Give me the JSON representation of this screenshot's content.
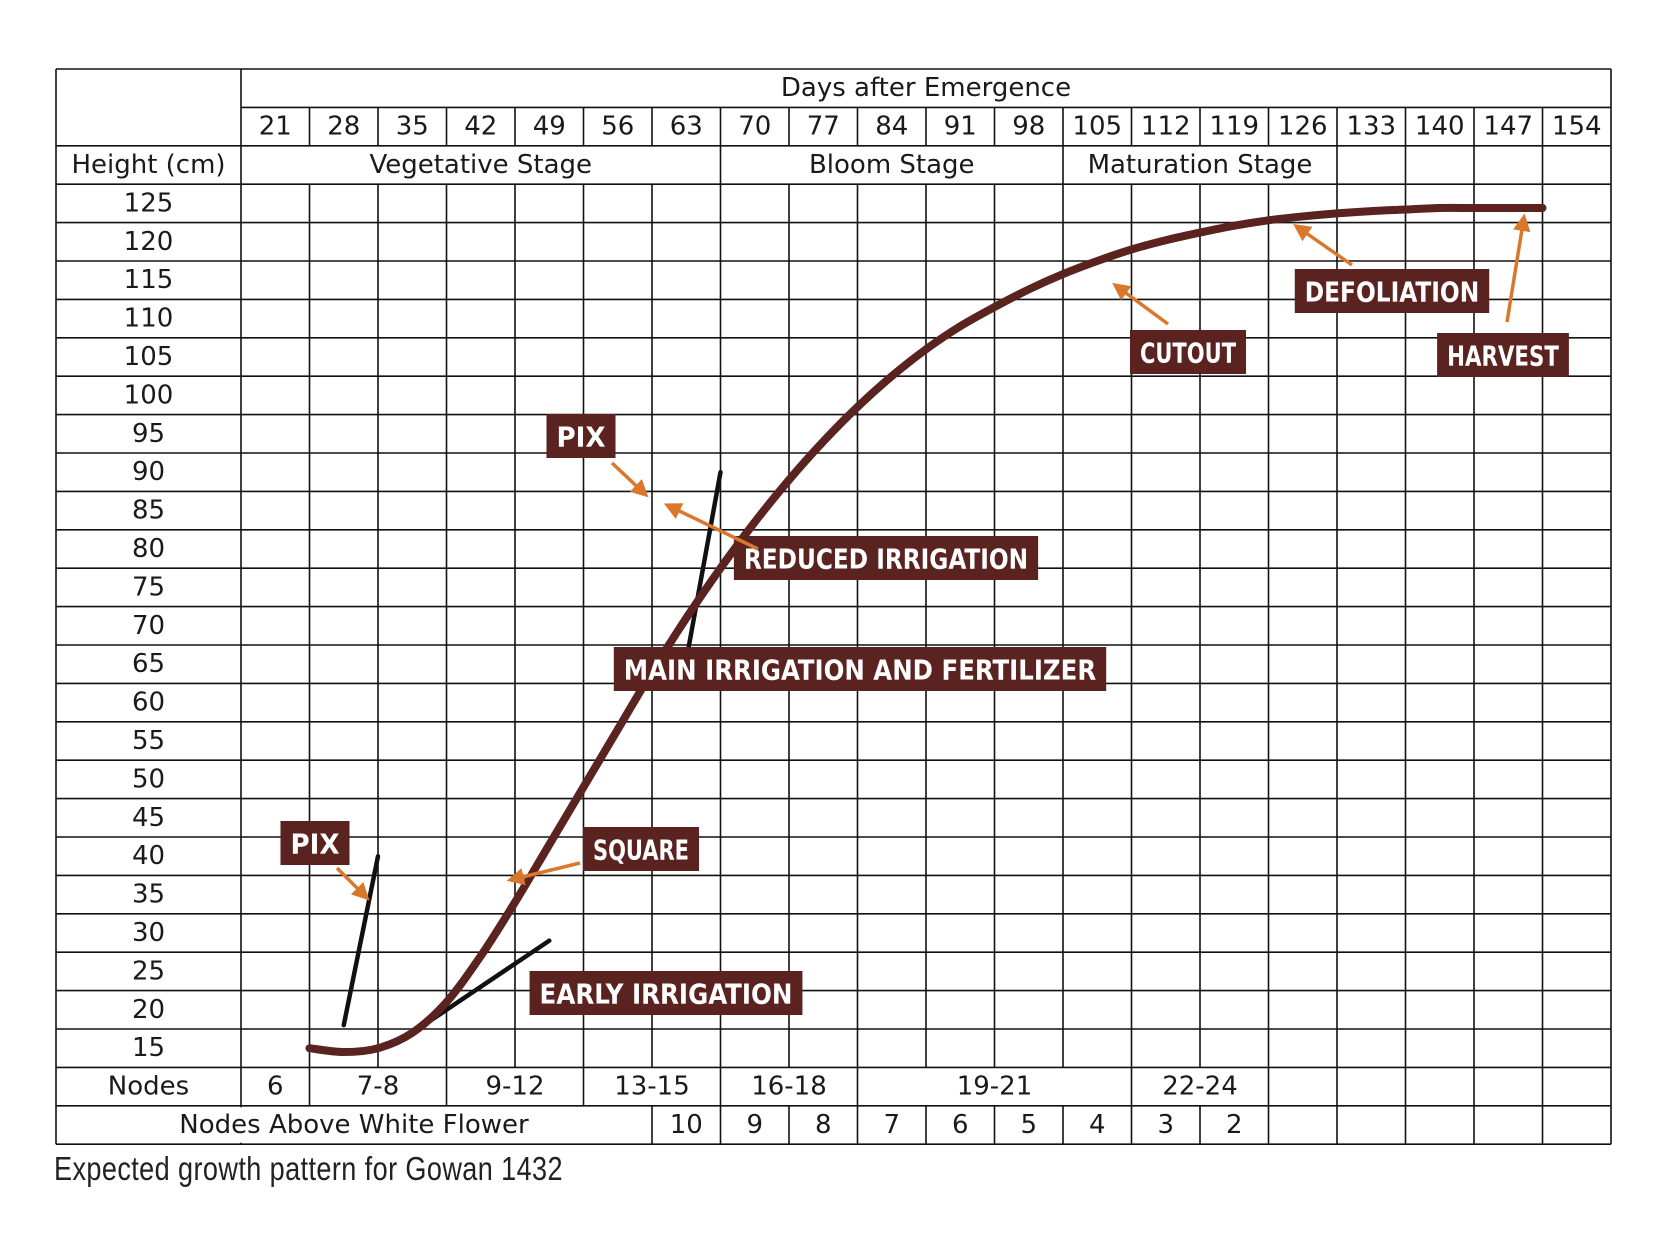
{
  "chart_data": {
    "type": "line",
    "header": "Days after Emergence",
    "x": [
      21,
      28,
      35,
      42,
      49,
      56,
      63,
      70,
      77,
      84,
      91,
      98,
      105,
      112,
      119,
      126,
      133,
      140,
      147,
      154
    ],
    "row_header_height": "Height (cm)",
    "y_ticks": [
      125,
      120,
      115,
      110,
      105,
      100,
      95,
      90,
      85,
      80,
      75,
      70,
      65,
      60,
      55,
      50,
      45,
      40,
      35,
      30,
      25,
      20,
      15
    ],
    "stages": [
      {
        "label": "Vegetative Stage",
        "from": 21,
        "to": 63
      },
      {
        "label": "Bloom Stage",
        "from": 70,
        "to": 98
      },
      {
        "label": "Maturation Stage",
        "from": 105,
        "to": 126
      }
    ],
    "nodes_label": "Nodes",
    "nodes": [
      {
        "label": "6",
        "from": 21,
        "to": 21
      },
      {
        "label": "7-8",
        "from": 28,
        "to": 35
      },
      {
        "label": "9-12",
        "from": 42,
        "to": 49
      },
      {
        "label": "13-15",
        "from": 56,
        "to": 63
      },
      {
        "label": "16-18",
        "from": 70,
        "to": 77
      },
      {
        "label": "19-21",
        "from": 84,
        "to": 105
      },
      {
        "label": "22-24",
        "from": 112,
        "to": 119
      }
    ],
    "nawf_label": "Nodes Above White Flower",
    "nawf": [
      {
        "day": 63,
        "value": "10"
      },
      {
        "day": 70,
        "value": "9"
      },
      {
        "day": 77,
        "value": "8"
      },
      {
        "day": 84,
        "value": "7"
      },
      {
        "day": 91,
        "value": "6"
      },
      {
        "day": 98,
        "value": "5"
      },
      {
        "day": 105,
        "value": "4"
      },
      {
        "day": 112,
        "value": "3"
      },
      {
        "day": 119,
        "value": "2"
      }
    ],
    "series": [
      {
        "color": "#5a2320",
        "points": [
          [
            24.5,
            15
          ],
          [
            28,
            14.5
          ],
          [
            31.5,
            15
          ],
          [
            35,
            17
          ],
          [
            38.5,
            21
          ],
          [
            42,
            27
          ],
          [
            45.5,
            34
          ],
          [
            49,
            41.5
          ],
          [
            52.5,
            49
          ],
          [
            56,
            56.5
          ],
          [
            59.5,
            64
          ],
          [
            63,
            71
          ],
          [
            66.5,
            77.5
          ],
          [
            70,
            83.5
          ],
          [
            73.5,
            89
          ],
          [
            77,
            94
          ],
          [
            80.5,
            98.5
          ],
          [
            84,
            102.5
          ],
          [
            87.5,
            106
          ],
          [
            91,
            109
          ],
          [
            94.5,
            111.5
          ],
          [
            98,
            113.8
          ],
          [
            101.5,
            115.8
          ],
          [
            105,
            117.5
          ],
          [
            108.5,
            119
          ],
          [
            112,
            120.2
          ],
          [
            115.5,
            121.2
          ],
          [
            119,
            122.1
          ],
          [
            122.5,
            122.8
          ],
          [
            126,
            123.3
          ],
          [
            129.5,
            123.7
          ],
          [
            133,
            124
          ],
          [
            136.5,
            124.2
          ],
          [
            140,
            124.4
          ],
          [
            143.5,
            124.4
          ],
          [
            147,
            124.4
          ],
          [
            150.5,
            124.4
          ]
        ]
      }
    ],
    "tangents": [
      {
        "from": [
          28,
          18
        ],
        "to": [
          31.5,
          40
        ]
      },
      {
        "from": [
          35,
          17
        ],
        "to": [
          49,
          29
        ]
      },
      {
        "from": [
          63,
          65.5
        ],
        "to": [
          66.5,
          90
        ]
      }
    ],
    "annotations": [
      {
        "text": "PIX",
        "day": 31.5,
        "height": 36
      },
      {
        "text": "EARLY IRRIGATION",
        "day": 35.5,
        "height": 17
      },
      {
        "text": "SQUARE",
        "day": 45.5,
        "height": 34
      },
      {
        "text": "PIX",
        "day": 64.5,
        "height": 86
      },
      {
        "text": "MAIN IRRIGATION AND FERTILIZER",
        "day": 64,
        "height": 66
      },
      {
        "text": "REDUCED IRRIGATION",
        "day": 66,
        "height": 86
      },
      {
        "text": "CUTOUT",
        "day": 109.5,
        "height": 116
      },
      {
        "text": "DEFOLIATION",
        "day": 126,
        "height": 121
      },
      {
        "text": "HARVEST",
        "day": 147,
        "height": 123.5
      }
    ],
    "label_color": "#5a2320",
    "arrow_color": "#d9782d"
  },
  "caption": "Expected growth pattern for Gowan 1432"
}
